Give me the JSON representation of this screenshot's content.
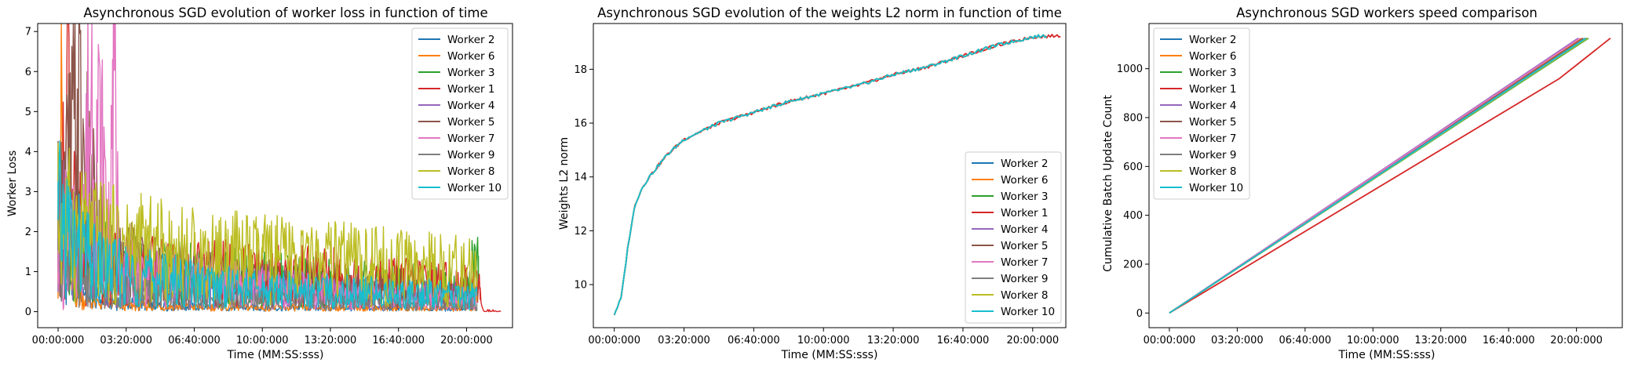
{
  "charts": [
    {
      "title": "Asynchronous SGD evolution of worker loss in function of time",
      "xlabel": "Time (MM:SS:sss)",
      "ylabel": "Worker Loss"
    },
    {
      "title": "Asynchronous SGD evolution of the weights L2 norm in function of time",
      "xlabel": "Time (MM:SS:sss)",
      "ylabel": "Weights L2 norm"
    },
    {
      "title": "Asynchronous SGD workers speed comparison",
      "xlabel": "Time (MM:SS:sss)",
      "ylabel": "Cumulative Batch Update Count"
    }
  ],
  "chart_data": [
    {
      "type": "line",
      "title": "Asynchronous SGD evolution of worker loss in function of time",
      "xlabel": "Time (MM:SS:sss)",
      "ylabel": "Worker Loss",
      "x_ticks": [
        "00:00:000",
        "03:20:000",
        "06:40:000",
        "10:00:000",
        "13:20:000",
        "16:40:000",
        "20:00:000"
      ],
      "x_tick_seconds": [
        0,
        200,
        400,
        600,
        800,
        1000,
        1200
      ],
      "xlim_seconds": [
        -60,
        1335
      ],
      "ylim": [
        -0.4,
        7.2
      ],
      "y_ticks": [
        0,
        1,
        2,
        3,
        4,
        5,
        6,
        7
      ],
      "legend_position": "top-right",
      "grid": false,
      "series": [
        {
          "name": "Worker 2",
          "color": "#1f77b4",
          "x": [
            0,
            20,
            40,
            80,
            120,
            200,
            300,
            400,
            600,
            800,
            1000,
            1200,
            1230
          ],
          "y": [
            2.3,
            1.4,
            0.8,
            0.5,
            0.3,
            0.2,
            0.15,
            0.12,
            0.1,
            0.1,
            0.08,
            0.08,
            0.07
          ]
        },
        {
          "name": "Worker 6",
          "color": "#ff7f0e",
          "x": [
            0,
            12,
            15,
            25,
            40,
            80,
            120,
            200,
            400,
            600,
            800,
            1000,
            1200,
            1230
          ],
          "y": [
            2.2,
            4.5,
            3.0,
            1.5,
            0.6,
            0.3,
            0.2,
            0.15,
            0.12,
            0.1,
            0.1,
            0.1,
            0.08,
            0.08
          ]
        },
        {
          "name": "Worker 3",
          "color": "#2ca02c",
          "x": [
            0,
            30,
            60,
            100,
            200,
            400,
            600,
            800,
            1000,
            1200,
            1235
          ],
          "y": [
            2.3,
            2.0,
            1.6,
            1.3,
            1.0,
            0.9,
            0.8,
            0.7,
            0.65,
            0.6,
            1.4
          ]
        },
        {
          "name": "Worker 1",
          "color": "#d62728",
          "x": [
            0,
            20,
            32,
            45,
            80,
            150,
            300,
            500,
            700,
            900,
            1100,
            1240,
            1250,
            1300
          ],
          "y": [
            2.3,
            3.0,
            6.85,
            2.4,
            1.5,
            1.2,
            1.0,
            0.95,
            0.9,
            0.8,
            0.7,
            0.6,
            0.02,
            0.0
          ]
        },
        {
          "name": "Worker 4",
          "color": "#9467bd",
          "x": [
            0,
            30,
            60,
            100,
            200,
            400,
            600,
            800,
            1000,
            1200,
            1230
          ],
          "y": [
            2.4,
            1.9,
            1.5,
            1.2,
            0.9,
            0.7,
            0.6,
            0.5,
            0.45,
            0.4,
            0.35
          ]
        },
        {
          "name": "Worker 5",
          "color": "#8c564b",
          "x": [
            0,
            30,
            60,
            90,
            120,
            200,
            400,
            600,
            800,
            1000,
            1200,
            1230
          ],
          "y": [
            2.3,
            3.5,
            4.7,
            3.0,
            1.8,
            1.2,
            0.9,
            0.7,
            0.6,
            0.5,
            0.4,
            0.35
          ]
        },
        {
          "name": "Worker 7",
          "color": "#e377c2",
          "x": [
            0,
            10,
            15,
            20,
            60,
            100,
            155,
            160,
            180,
            200,
            400,
            600,
            800,
            1000,
            1200,
            1230
          ],
          "y": [
            2.2,
            0.8,
            0.05,
            2.0,
            1.5,
            5.6,
            1.8,
            6.3,
            1.2,
            1.0,
            0.8,
            0.6,
            0.5,
            0.4,
            0.35,
            0.3
          ]
        },
        {
          "name": "Worker 9",
          "color": "#7f7f7f",
          "x": [
            0,
            30,
            60,
            100,
            200,
            400,
            600,
            800,
            1000,
            1200,
            1230
          ],
          "y": [
            2.2,
            1.5,
            1.0,
            0.7,
            0.5,
            0.35,
            0.3,
            0.25,
            0.2,
            0.2,
            0.2
          ]
        },
        {
          "name": "Worker 8",
          "color": "#bcbd22",
          "x": [
            0,
            30,
            60,
            100,
            200,
            400,
            600,
            800,
            1000,
            1200,
            1230
          ],
          "y": [
            2.4,
            2.2,
            2.0,
            1.8,
            1.6,
            1.4,
            1.3,
            1.2,
            1.1,
            1.0,
            0.9
          ]
        },
        {
          "name": "Worker 10",
          "color": "#17becf",
          "x": [
            0,
            30,
            60,
            100,
            200,
            400,
            600,
            800,
            1000,
            1200,
            1230
          ],
          "y": [
            2.3,
            2.0,
            1.6,
            1.2,
            0.9,
            0.7,
            0.55,
            0.5,
            0.45,
            0.4,
            0.4
          ]
        }
      ]
    },
    {
      "type": "line",
      "title": "Asynchronous SGD evolution of the weights L2 norm in function of time",
      "xlabel": "Time (MM:SS:sss)",
      "ylabel": "Weights L2 norm",
      "x_ticks": [
        "00:00:000",
        "03:20:000",
        "06:40:000",
        "10:00:000",
        "13:20:000",
        "16:40:000",
        "20:00:000"
      ],
      "x_tick_seconds": [
        0,
        200,
        400,
        600,
        800,
        1000,
        1200
      ],
      "xlim_seconds": [
        -60,
        1295
      ],
      "ylim": [
        8.4,
        19.7
      ],
      "y_ticks": [
        10,
        12,
        14,
        16,
        18
      ],
      "legend_position": "bottom-right",
      "grid": false,
      "series": [
        {
          "name": "Worker 2",
          "color": "#1f77b4",
          "x": [
            0,
            20,
            40,
            60,
            80,
            100,
            150,
            200,
            300,
            400,
            500,
            600,
            700,
            800,
            900,
            1000,
            1100,
            1200,
            1240
          ],
          "y": [
            8.9,
            9.5,
            11.5,
            13.0,
            13.6,
            14.0,
            14.8,
            15.4,
            16.0,
            16.4,
            16.8,
            17.1,
            17.4,
            17.8,
            18.1,
            18.5,
            18.9,
            19.2,
            19.25
          ]
        },
        {
          "name": "Worker 6",
          "color": "#ff7f0e",
          "x": [
            0,
            20,
            40,
            60,
            80,
            100,
            150,
            200,
            300,
            400,
            500,
            600,
            700,
            800,
            900,
            1000,
            1100,
            1200,
            1240
          ],
          "y": [
            8.9,
            9.5,
            11.5,
            13.0,
            13.6,
            14.0,
            14.8,
            15.4,
            16.0,
            16.4,
            16.8,
            17.1,
            17.4,
            17.8,
            18.1,
            18.5,
            18.9,
            19.2,
            19.25
          ]
        },
        {
          "name": "Worker 3",
          "color": "#2ca02c",
          "x": [
            0,
            20,
            40,
            60,
            80,
            100,
            150,
            200,
            300,
            400,
            500,
            600,
            700,
            800,
            900,
            1000,
            1100,
            1200,
            1240
          ],
          "y": [
            8.9,
            9.5,
            11.5,
            13.0,
            13.6,
            14.0,
            14.8,
            15.4,
            16.0,
            16.4,
            16.8,
            17.1,
            17.4,
            17.8,
            18.1,
            18.5,
            18.9,
            19.2,
            19.25
          ]
        },
        {
          "name": "Worker 1",
          "color": "#d62728",
          "x": [
            0,
            20,
            40,
            60,
            80,
            100,
            150,
            200,
            300,
            400,
            500,
            600,
            700,
            800,
            900,
            1000,
            1100,
            1200,
            1280
          ],
          "y": [
            8.9,
            9.5,
            11.5,
            13.0,
            13.6,
            14.0,
            14.8,
            15.4,
            16.0,
            16.4,
            16.8,
            17.1,
            17.4,
            17.8,
            18.1,
            18.5,
            18.9,
            19.2,
            19.25
          ]
        },
        {
          "name": "Worker 4",
          "color": "#9467bd",
          "x": [
            0,
            20,
            40,
            60,
            80,
            100,
            150,
            200,
            300,
            400,
            500,
            600,
            700,
            800,
            900,
            1000,
            1100,
            1200,
            1240
          ],
          "y": [
            8.9,
            9.5,
            11.5,
            13.0,
            13.6,
            14.0,
            14.8,
            15.4,
            16.0,
            16.4,
            16.8,
            17.1,
            17.4,
            17.8,
            18.1,
            18.5,
            18.9,
            19.2,
            19.25
          ]
        },
        {
          "name": "Worker 5",
          "color": "#8c564b",
          "x": [
            0,
            20,
            40,
            60,
            80,
            100,
            150,
            200,
            300,
            400,
            500,
            600,
            700,
            800,
            900,
            1000,
            1100,
            1200,
            1240
          ],
          "y": [
            8.9,
            9.5,
            11.5,
            13.0,
            13.6,
            14.0,
            14.8,
            15.4,
            16.0,
            16.4,
            16.8,
            17.1,
            17.4,
            17.8,
            18.1,
            18.5,
            18.9,
            19.2,
            19.25
          ]
        },
        {
          "name": "Worker 7",
          "color": "#e377c2",
          "x": [
            0,
            20,
            40,
            60,
            80,
            100,
            150,
            200,
            300,
            400,
            500,
            600,
            700,
            800,
            900,
            1000,
            1100,
            1200,
            1240
          ],
          "y": [
            8.9,
            9.5,
            11.5,
            13.0,
            13.6,
            14.0,
            14.8,
            15.4,
            16.0,
            16.4,
            16.8,
            17.1,
            17.4,
            17.8,
            18.1,
            18.5,
            18.9,
            19.2,
            19.25
          ]
        },
        {
          "name": "Worker 9",
          "color": "#7f7f7f",
          "x": [
            0,
            20,
            40,
            60,
            80,
            100,
            150,
            200,
            300,
            400,
            500,
            600,
            700,
            800,
            900,
            1000,
            1100,
            1200,
            1240
          ],
          "y": [
            8.9,
            9.5,
            11.5,
            13.0,
            13.6,
            14.0,
            14.8,
            15.4,
            16.0,
            16.4,
            16.8,
            17.1,
            17.4,
            17.8,
            18.1,
            18.5,
            18.9,
            19.2,
            19.25
          ]
        },
        {
          "name": "Worker 8",
          "color": "#bcbd22",
          "x": [
            0,
            20,
            40,
            60,
            80,
            100,
            150,
            200,
            300,
            400,
            500,
            600,
            700,
            800,
            900,
            1000,
            1100,
            1200,
            1240
          ],
          "y": [
            8.9,
            9.5,
            11.5,
            13.0,
            13.6,
            14.0,
            14.8,
            15.4,
            16.0,
            16.4,
            16.8,
            17.1,
            17.4,
            17.8,
            18.1,
            18.5,
            18.9,
            19.2,
            19.25
          ]
        },
        {
          "name": "Worker 10",
          "color": "#17becf",
          "x": [
            0,
            20,
            40,
            60,
            80,
            100,
            150,
            200,
            300,
            400,
            500,
            600,
            700,
            800,
            900,
            1000,
            1100,
            1200,
            1240
          ],
          "y": [
            8.9,
            9.5,
            11.5,
            13.0,
            13.6,
            14.0,
            14.8,
            15.4,
            16.0,
            16.4,
            16.8,
            17.1,
            17.4,
            17.8,
            18.1,
            18.5,
            18.9,
            19.2,
            19.25
          ]
        }
      ]
    },
    {
      "type": "line",
      "title": "Asynchronous SGD workers speed comparison",
      "xlabel": "Time (MM:SS:sss)",
      "ylabel": "Cumulative Batch Update Count",
      "x_ticks": [
        "00:00:000",
        "03:20:000",
        "06:40:000",
        "10:00:000",
        "13:20:000",
        "16:40:000",
        "20:00:000"
      ],
      "x_tick_seconds": [
        0,
        200,
        400,
        600,
        800,
        1000,
        1200
      ],
      "xlim_seconds": [
        -60,
        1335
      ],
      "ylim": [
        -60,
        1185
      ],
      "y_ticks": [
        0,
        200,
        400,
        600,
        800,
        1000
      ],
      "legend_position": "top-left",
      "grid": false,
      "series": [
        {
          "name": "Worker 2",
          "color": "#1f77b4",
          "x": [
            0,
            1230
          ],
          "y": [
            0,
            1125
          ]
        },
        {
          "name": "Worker 6",
          "color": "#ff7f0e",
          "x": [
            0,
            1215
          ],
          "y": [
            0,
            1125
          ]
        },
        {
          "name": "Worker 3",
          "color": "#2ca02c",
          "x": [
            0,
            1235
          ],
          "y": [
            0,
            1125
          ]
        },
        {
          "name": "Worker 1",
          "color": "#d62728",
          "x": [
            0,
            1150,
            1200,
            1300
          ],
          "y": [
            0,
            960,
            1015,
            1125
          ]
        },
        {
          "name": "Worker 4",
          "color": "#9467bd",
          "x": [
            0,
            1205
          ],
          "y": [
            0,
            1125
          ]
        },
        {
          "name": "Worker 5",
          "color": "#8c564b",
          "x": [
            0,
            1220
          ],
          "y": [
            0,
            1125
          ]
        },
        {
          "name": "Worker 7",
          "color": "#e377c2",
          "x": [
            0,
            1210
          ],
          "y": [
            0,
            1125
          ]
        },
        {
          "name": "Worker 9",
          "color": "#7f7f7f",
          "x": [
            0,
            1225
          ],
          "y": [
            0,
            1125
          ]
        },
        {
          "name": "Worker 8",
          "color": "#bcbd22",
          "x": [
            0,
            1232
          ],
          "y": [
            0,
            1125
          ]
        },
        {
          "name": "Worker 10",
          "color": "#17becf",
          "x": [
            0,
            1228
          ],
          "y": [
            0,
            1125
          ]
        }
      ]
    }
  ]
}
